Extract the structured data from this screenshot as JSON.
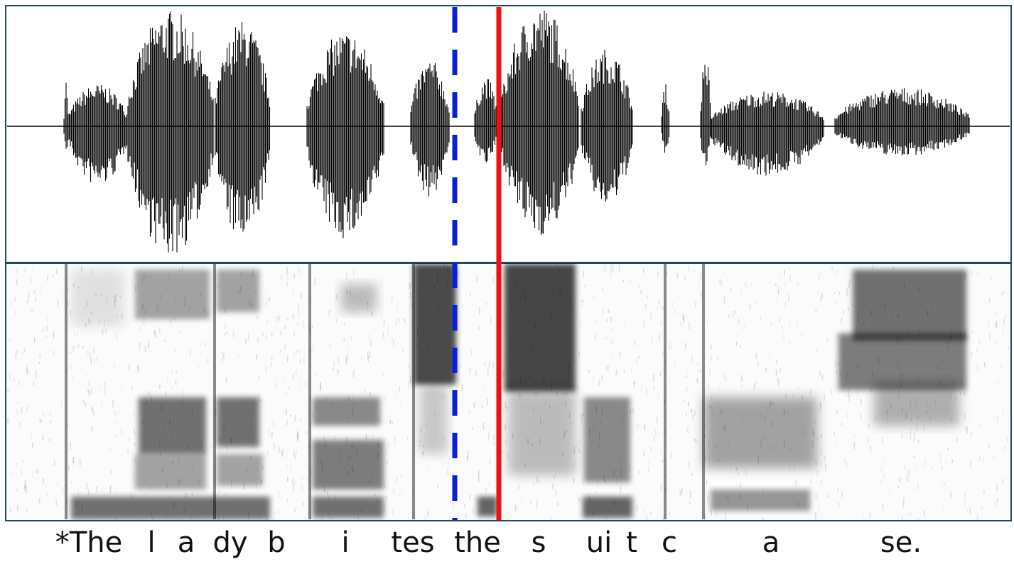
{
  "colors": {
    "frame": "#1f4e5a",
    "waveform": "#000000",
    "dashed_marker": "#0a1fdc",
    "solid_marker": "#ee1111"
  },
  "markers": [
    {
      "name": "dashed-blue-marker",
      "style": "dashed",
      "color": "#0a1fdc"
    },
    {
      "name": "solid-red-marker",
      "style": "solid",
      "color": "#ee1111"
    }
  ],
  "transcript": {
    "segments": [
      "*The",
      "l",
      "a",
      "dy",
      "b",
      "i",
      "tes",
      "the",
      "s",
      "ui",
      "t",
      "c",
      "a",
      "se."
    ]
  }
}
